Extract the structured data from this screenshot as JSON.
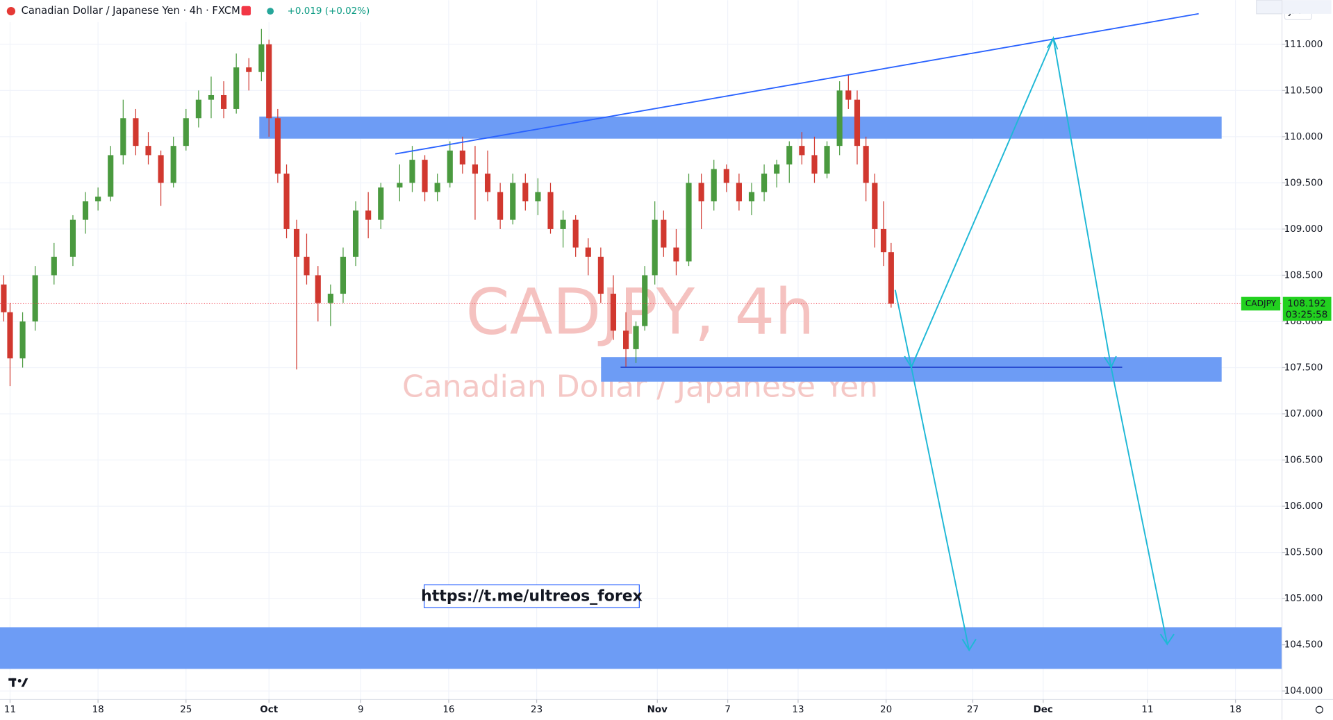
{
  "chart_data": {
    "type": "candlestick",
    "title": "Canadian Dollar / Japanese Yen · 4h · FXCM",
    "change": "+0.019 (+0.02%)",
    "watermark": "CADJPY, 4h",
    "watermark_subtitle": "Canadian Dollar / Japanese Yen",
    "link": "https://t.me/ultreos_forex",
    "currency": "JPY",
    "symbol": "CADJPY",
    "last_price": 108.192,
    "countdown": "03:25:58",
    "high": [
      108.5,
      108.2,
      108.1,
      108.6,
      108.85,
      109.15,
      109.4,
      109.45,
      109.9,
      110.4,
      110.3,
      110.05,
      109.85,
      110.0,
      110.3,
      110.5,
      110.65,
      110.6,
      110.9,
      110.85,
      111.166,
      111.05,
      110.3,
      109.7,
      109.1,
      108.95,
      108.6,
      108.4,
      108.8,
      109.3,
      109.4,
      109.5,
      109.7,
      109.9,
      109.8,
      109.6,
      109.95,
      110.0,
      109.9,
      109.85,
      109.5,
      109.6,
      109.6,
      109.55,
      109.5,
      109.2,
      109.15,
      108.9,
      108.8,
      108.5,
      108.1,
      108.0,
      108.6,
      109.3,
      109.2,
      109.0,
      109.6,
      109.6,
      109.75,
      109.7,
      109.6,
      109.5,
      109.7,
      109.75,
      109.95,
      110.05,
      110.0,
      109.95,
      110.6,
      110.67,
      110.5,
      110.0,
      109.6,
      109.3,
      108.85
    ],
    "low": [
      108.0,
      107.3,
      107.5,
      107.9,
      108.4,
      108.6,
      108.95,
      109.2,
      109.3,
      109.7,
      109.8,
      109.7,
      109.25,
      109.45,
      109.85,
      110.1,
      110.2,
      110.2,
      110.25,
      110.5,
      110.6,
      110.0,
      109.5,
      108.9,
      107.48,
      108.4,
      108.0,
      107.95,
      108.2,
      108.6,
      108.9,
      109.0,
      109.3,
      109.4,
      109.3,
      109.3,
      109.45,
      109.6,
      109.1,
      109.3,
      109.0,
      109.05,
      109.2,
      109.15,
      108.95,
      108.8,
      108.7,
      108.5,
      108.2,
      107.8,
      107.5,
      107.55,
      107.9,
      108.4,
      108.7,
      108.5,
      108.6,
      109.0,
      109.2,
      109.4,
      109.2,
      109.15,
      109.3,
      109.45,
      109.5,
      109.7,
      109.5,
      109.55,
      109.8,
      110.3,
      109.7,
      109.3,
      108.8,
      108.6,
      108.15
    ],
    "up_color": "#4a9a3f",
    "down_color": "#d1382f",
    "xlim": [
      -0.8,
      101.2
    ],
    "ylim": [
      103.908,
      111.478
    ],
    "xticks": [
      {
        "value": 0,
        "label": "11"
      },
      {
        "value": 7,
        "label": "18"
      },
      {
        "value": 14,
        "label": "25"
      },
      {
        "value": 20.6,
        "label": "Oct"
      },
      {
        "value": 27.9,
        "label": "9"
      },
      {
        "value": 34.9,
        "label": "16"
      },
      {
        "value": 41.9,
        "label": "23"
      },
      {
        "value": 51.5,
        "label": "Nov"
      },
      {
        "value": 57.1,
        "label": "7"
      },
      {
        "value": 62.7,
        "label": "13"
      },
      {
        "value": 69.7,
        "label": "20"
      },
      {
        "value": 76.6,
        "label": "27"
      },
      {
        "value": 82.2,
        "label": "Dec"
      },
      {
        "value": 90.5,
        "label": "11"
      },
      {
        "value": 97.5,
        "label": "18"
      }
    ],
    "yticks": [
      {
        "value": 104,
        "label": "104.000"
      },
      {
        "value": 104.5,
        "label": "104.500"
      },
      {
        "value": 105,
        "label": "105.000"
      },
      {
        "value": 105.5,
        "label": "105.500"
      },
      {
        "value": 106,
        "label": "106.000"
      },
      {
        "value": 106.5,
        "label": "106.500"
      },
      {
        "value": 107,
        "label": "107.000"
      },
      {
        "value": 107.5,
        "label": "107.500"
      },
      {
        "value": 108,
        "label": "108.000"
      },
      {
        "value": 108.5,
        "label": "108.500"
      },
      {
        "value": 109,
        "label": "109.000"
      },
      {
        "value": 109.5,
        "label": "109.500"
      },
      {
        "value": 110,
        "label": "110.000"
      },
      {
        "value": 110.5,
        "label": "110.500"
      },
      {
        "value": 111,
        "label": "111.000"
      }
    ],
    "grid": true,
    "x": [
      -0.5,
      0,
      1,
      2,
      3.5,
      5,
      6,
      7,
      8,
      9,
      10,
      11,
      12,
      13,
      14,
      15,
      16,
      17,
      18,
      19,
      20,
      20.6,
      21.3,
      22,
      22.8,
      23.6,
      24.5,
      25.5,
      26.5,
      27.5,
      28.5,
      29.5,
      31,
      32,
      33,
      34,
      35,
      36,
      37,
      38,
      39,
      40,
      41,
      42,
      43,
      44,
      45,
      46,
      47,
      48,
      49,
      49.8,
      50.5,
      51.3,
      52,
      53,
      54,
      55,
      56,
      57,
      58,
      59,
      60,
      61,
      62,
      63,
      64,
      65,
      66,
      66.7,
      67.4,
      68.1,
      68.8,
      69.5,
      70.1
    ],
    "open": [
      108.4,
      108.1,
      107.6,
      108.0,
      108.5,
      108.7,
      109.1,
      109.3,
      109.35,
      109.8,
      110.2,
      109.9,
      109.8,
      109.5,
      109.9,
      110.2,
      110.4,
      110.45,
      110.3,
      110.75,
      110.7,
      111.0,
      110.2,
      109.6,
      109.0,
      108.7,
      108.5,
      108.2,
      108.3,
      108.7,
      109.2,
      109.1,
      109.45,
      109.5,
      109.75,
      109.4,
      109.5,
      109.85,
      109.7,
      109.6,
      109.4,
      109.1,
      109.5,
      109.3,
      109.4,
      109.0,
      109.1,
      108.8,
      108.7,
      108.3,
      107.9,
      107.7,
      107.95,
      108.5,
      109.1,
      108.8,
      108.65,
      109.5,
      109.3,
      109.65,
      109.5,
      109.3,
      109.4,
      109.6,
      109.7,
      109.9,
      109.8,
      109.6,
      109.9,
      110.5,
      110.4,
      109.9,
      109.5,
      109.0,
      108.75
    ],
    "close": [
      108.1,
      107.6,
      108.0,
      108.5,
      108.7,
      109.1,
      109.3,
      109.35,
      109.8,
      110.2,
      109.9,
      109.8,
      109.5,
      109.9,
      110.2,
      110.4,
      110.45,
      110.3,
      110.75,
      110.7,
      111.0,
      110.2,
      109.6,
      109.0,
      108.7,
      108.5,
      108.2,
      108.3,
      108.7,
      109.2,
      109.1,
      109.45,
      109.5,
      109.75,
      109.4,
      109.5,
      109.85,
      109.7,
      109.6,
      109.4,
      109.1,
      109.5,
      109.3,
      109.4,
      109.0,
      109.1,
      108.8,
      108.7,
      108.3,
      107.9,
      107.7,
      107.95,
      108.5,
      109.1,
      108.8,
      108.65,
      109.5,
      109.3,
      109.65,
      109.5,
      109.3,
      109.4,
      109.6,
      109.7,
      109.9,
      109.8,
      109.6,
      109.9,
      110.5,
      110.4,
      109.9,
      109.5,
      109.0,
      108.75,
      108.192
    ]
  }
}
